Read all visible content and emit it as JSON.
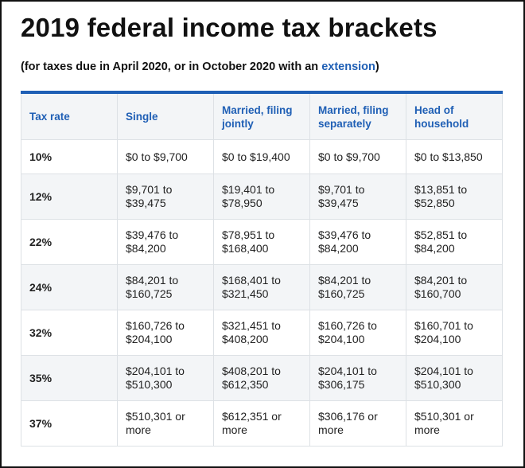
{
  "title": "2019 federal income tax brackets",
  "subtitle": {
    "before": "(for taxes due in April 2020, or in October 2020 with an ",
    "link": "extension",
    "after": ")"
  },
  "table": {
    "headers": [
      "Tax rate",
      "Single",
      "Married, filing jointly",
      "Married, filing separately",
      "Head of household"
    ],
    "rows": [
      [
        "10%",
        "$0 to $9,700",
        "$0 to $19,400",
        "$0 to $9,700",
        "$0 to $13,850"
      ],
      [
        "12%",
        "$9,701 to $39,475",
        "$19,401 to $78,950",
        "$9,701 to $39,475",
        "$13,851 to $52,850"
      ],
      [
        "22%",
        "$39,476 to $84,200",
        "$78,951 to $168,400",
        "$39,476 to $84,200",
        "$52,851 to $84,200"
      ],
      [
        "24%",
        "$84,201 to $160,725",
        "$168,401 to $321,450",
        "$84,201 to $160,725",
        "$84,201 to $160,700"
      ],
      [
        "32%",
        "$160,726 to $204,100",
        "$321,451 to $408,200",
        "$160,726 to $204,100",
        "$160,701 to $204,100"
      ],
      [
        "35%",
        "$204,101 to $510,300",
        "$408,201 to $612,350",
        "$204,101 to $306,175",
        "$204,101 to $510,300"
      ],
      [
        "37%",
        "$510,301 or more",
        "$612,351 or more",
        "$306,176 or more",
        "$510,301 or more"
      ]
    ]
  },
  "colors": {
    "accent": "#1f5fb5",
    "stripe": "#f3f5f7"
  }
}
